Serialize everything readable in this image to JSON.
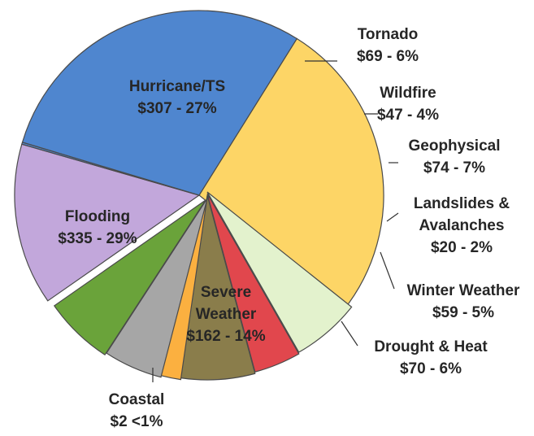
{
  "chart_data": {
    "type": "pie",
    "title": "",
    "slices": [
      {
        "name": "Hurricane/TS",
        "value": 307,
        "label_amount": "$307",
        "label_pct": "27%",
        "color": "#fdd566"
      },
      {
        "name": "Tornado",
        "value": 69,
        "label_amount": "$69",
        "label_pct": "6%",
        "color": "#e3f2cd"
      },
      {
        "name": "Wildfire",
        "value": 47,
        "label_amount": "$47",
        "label_pct": "4%",
        "color": "#e1474d"
      },
      {
        "name": "Geophysical",
        "value": 74,
        "label_amount": "$74",
        "label_pct": "7%",
        "color": "#8a7d4b"
      },
      {
        "name": "Landslides & Avalanches",
        "value": 20,
        "label_amount": "$20",
        "label_pct": "2%",
        "color": "#fbb040"
      },
      {
        "name": "Winter Weather",
        "value": 59,
        "label_amount": "$59",
        "label_pct": "5%",
        "color": "#a6a6a6"
      },
      {
        "name": "Drought & Heat",
        "value": 70,
        "label_amount": "$70",
        "label_pct": "6%",
        "color": "#6aa33a"
      },
      {
        "name": "Severe Weather",
        "value": 162,
        "label_amount": "$162",
        "label_pct": "14%",
        "color": "#c2a7db"
      },
      {
        "name": "Coastal",
        "value": 2,
        "label_amount": "$2",
        "label_pct": "<1%",
        "color": "#4f86cf"
      },
      {
        "name": "Flooding",
        "value": 335,
        "label_amount": "$335",
        "label_pct": "29%",
        "color": "#4f86cf"
      }
    ],
    "labels": [
      {
        "lines": [
          "Hurricane/TS",
          "$307 - 27%"
        ]
      },
      {
        "lines": [
          "Tornado",
          "$69 - 6%"
        ]
      },
      {
        "lines": [
          "Wildfire",
          "$47 - 4%"
        ]
      },
      {
        "lines": [
          "Geophysical",
          "$74 - 7%"
        ]
      },
      {
        "lines": [
          "Landslides &",
          "Avalanches",
          "$20 - 2%"
        ]
      },
      {
        "lines": [
          "Winter Weather",
          "$59 - 5%"
        ]
      },
      {
        "lines": [
          "Drought & Heat",
          "$70 - 6%"
        ]
      },
      {
        "lines": [
          "Severe",
          "Weather",
          "$162 - 14%"
        ]
      },
      {
        "lines": [
          "Coastal",
          "$2  <1%"
        ]
      },
      {
        "lines": [
          "Flooding",
          "$335 - 29%"
        ]
      }
    ]
  }
}
